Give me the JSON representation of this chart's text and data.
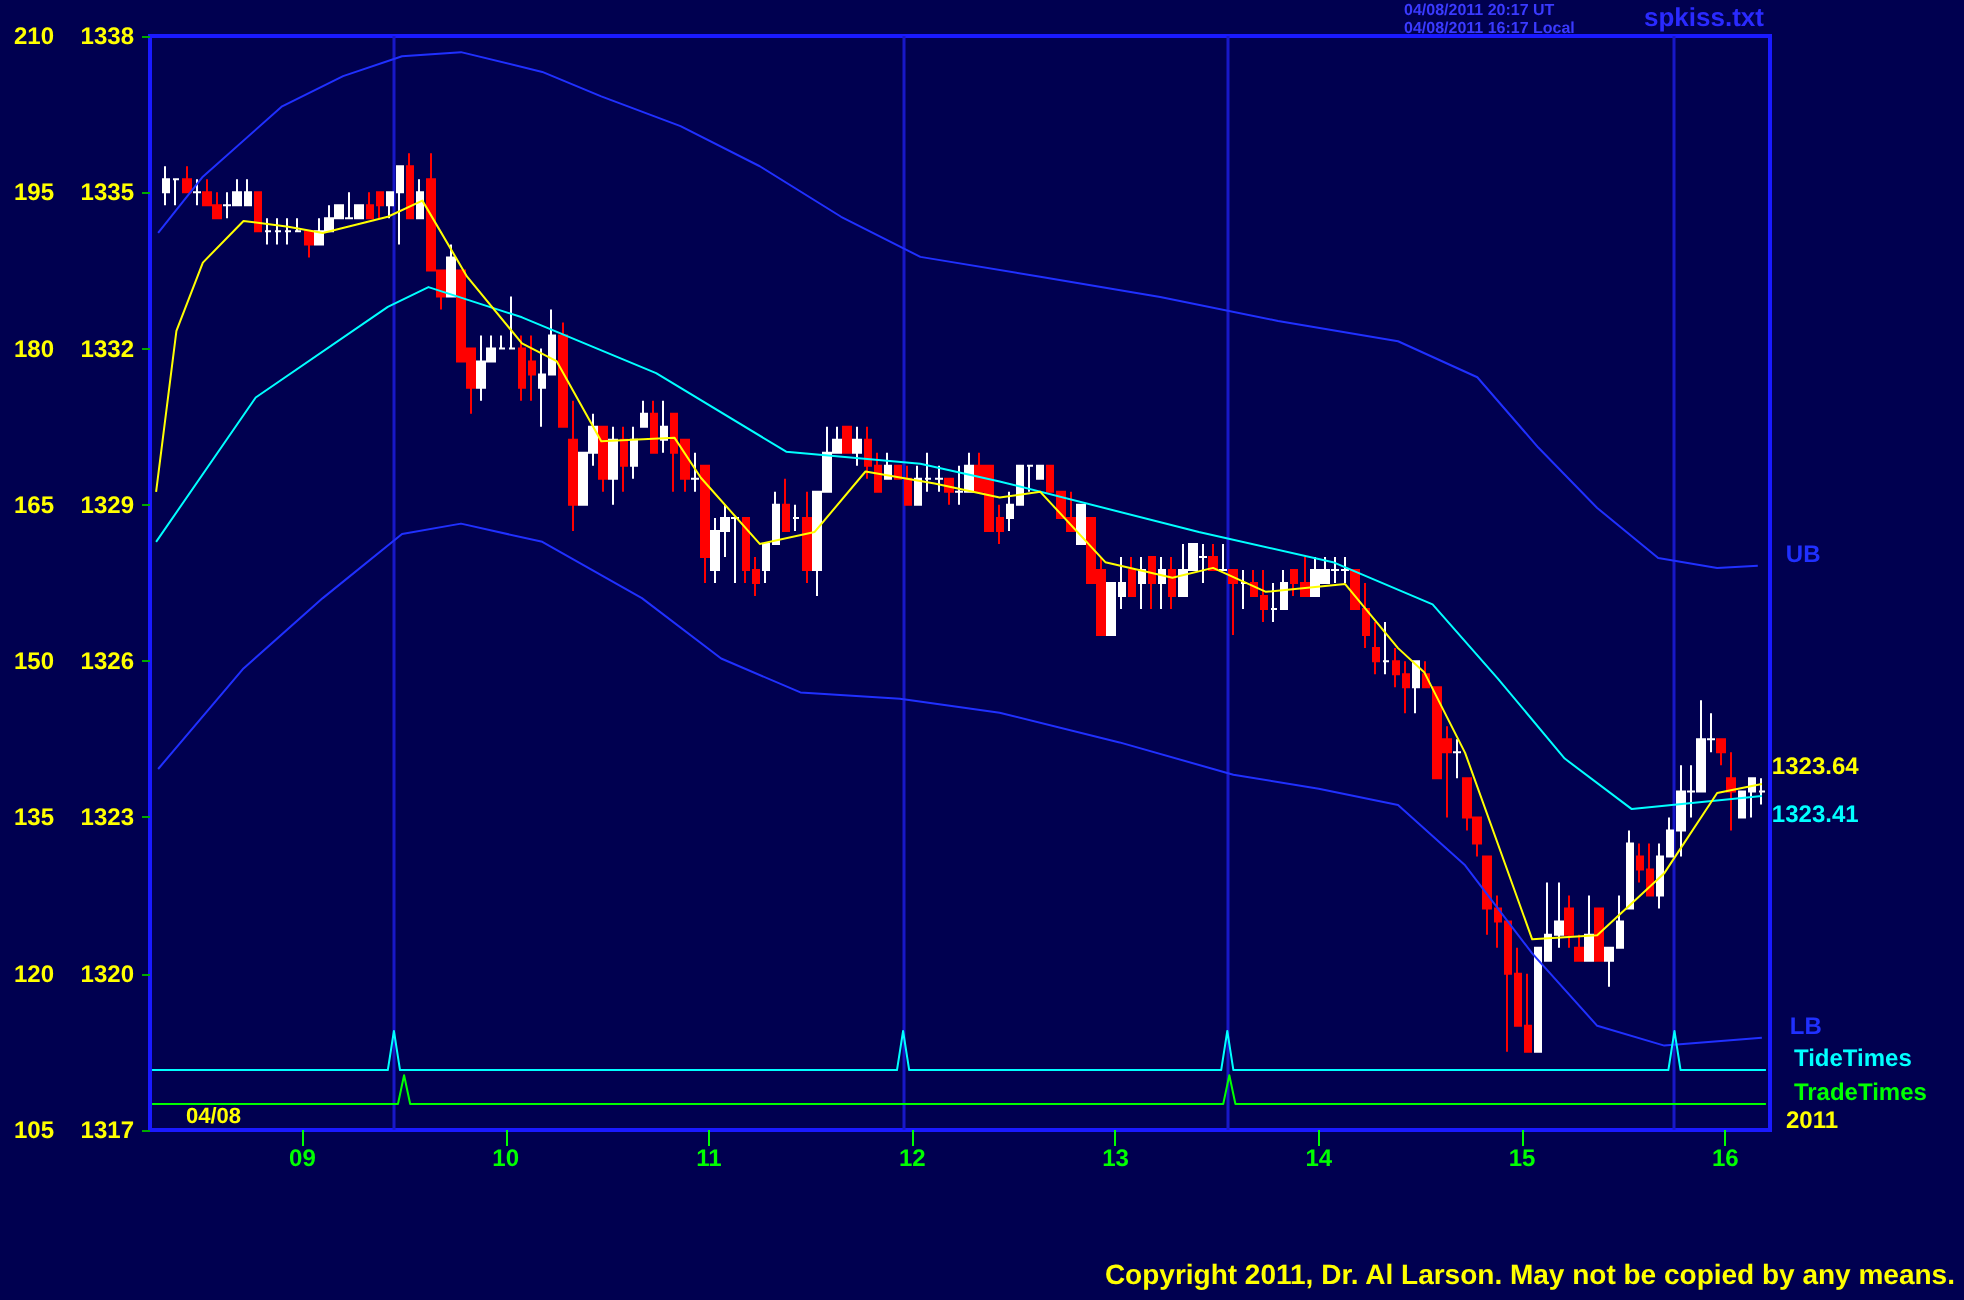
{
  "chart_data": {
    "type": "candlestick",
    "xlim": [
      8.25,
      16.22
    ],
    "xticks": [
      {
        "value": 9,
        "label": "09"
      },
      {
        "value": 10,
        "label": "10"
      },
      {
        "value": 11,
        "label": "11"
      },
      {
        "value": 12,
        "label": "12"
      },
      {
        "value": 13,
        "label": "13"
      },
      {
        "value": 14,
        "label": "14"
      },
      {
        "value": 15,
        "label": "15"
      },
      {
        "value": 16,
        "label": "16"
      }
    ],
    "ylim": [
      1317,
      1338
    ],
    "yticks": [
      1317,
      1320,
      1323,
      1326,
      1329,
      1332,
      1335,
      1338
    ],
    "y2lim": [
      105,
      210
    ],
    "y2ticks": [
      105,
      120,
      135,
      150,
      165,
      180,
      195,
      210
    ],
    "annotations": [
      "spkiss.txt",
      "04/08/2011 20:17 UT",
      "04/08/2011 16:17 Local",
      "04/08",
      "2011",
      "Copyright 2011, Dr. Al Larson. May not be copied by any means."
    ],
    "ref_lines": [
      {
        "axis": "x",
        "value": 9.45,
        "color": "#1818c8"
      },
      {
        "axis": "x",
        "value": 11.955,
        "color": "#1818c8"
      },
      {
        "axis": "x",
        "value": 13.55,
        "color": "#1818c8"
      },
      {
        "axis": "x",
        "value": 15.75,
        "color": "#1818c8"
      }
    ],
    "series": [
      {
        "colors": [
          "#ffffff",
          "#ffffff",
          "#ff0000",
          "#ffffff",
          "#ff0000",
          "#ff0000",
          "#ffffff",
          "#ffffff",
          "#ffffff",
          "#ff0000",
          "#ffffff",
          "#ffffff",
          "#ffffff",
          "#ffffff",
          "#ff0000",
          "#ffffff",
          "#ffffff",
          "#ffffff",
          "#ffffff",
          "#ffffff",
          "#ff0000",
          "#ff0000",
          "#ffffff",
          "#ffffff",
          "#ff0000",
          "#ffffff",
          "#ff0000",
          "#ff0000",
          "#ffffff",
          "#ff0000",
          "#ff0000",
          "#ffffff",
          "#ffffff",
          "#ffffff",
          "#ffffff",
          "#ff0000",
          "#ff0000",
          "#ffffff",
          "#ffffff",
          "#ff0000",
          "#ff0000",
          "#ffffff",
          "#ffffff",
          "#ff0000",
          "#ffffff",
          "#ff0000",
          "#ffffff",
          "#ffffff",
          "#ff0000",
          "#ffffff",
          "#ff0000",
          "#ff0000",
          "#ffffff",
          "#ff0000",
          "#ffffff",
          "#ffffff",
          "#ffffff",
          "#ff0000",
          "#ff0000",
          "#ffffff",
          "#ffffff",
          "#ff0000",
          "#ffffff",
          "#ff0000",
          "#ffffff",
          "#ffffff",
          "#ffffff",
          "#ff0000",
          "#ffffff",
          "#ff0000",
          "#ff0000",
          "#ffffff",
          "#ff0000",
          "#ff0000",
          "#ffffff",
          "#ffffff",
          "#ffffff",
          "#ff0000",
          "#ffffff",
          "#ffffff",
          "#ff0000",
          "#ff0000",
          "#ff0000",
          "#ffffff",
          "#ffffff",
          "#ffffff",
          "#ffffff",
          "#ff0000",
          "#ff0000",
          "#ff0000",
          "#ffffff",
          "#ff0000",
          "#ff0000",
          "#ffffff",
          "#ffffff",
          "#ff0000",
          "#ffffff",
          "#ff0000",
          "#ffffff",
          "#ff0000",
          "#ffffff",
          "#ffffff",
          "#ffffff",
          "#ff0000",
          "#ffffff",
          "#ff0000",
          "#ffffff",
          "#ff0000",
          "#ff0000",
          "#ffffff",
          "#ffffff",
          "#ff0000",
          "#ff0000",
          "#ffffff",
          "#ffffff",
          "#ffffff",
          "#ffffff",
          "#ff0000",
          "#ff0000",
          "#ff0000",
          "#ffffff",
          "#ff0000",
          "#ff0000",
          "#ffffff",
          "#ff0000",
          "#ff0000",
          "#ff0000",
          "#ffffff",
          "#ff0000",
          "#ff0000",
          "#ff0000",
          "#ff0000",
          "#ff0000",
          "#ff0000",
          "#ff0000",
          "#ffffff",
          "#ffffff",
          "#ffffff",
          "#ff0000",
          "#ff0000",
          "#ffffff",
          "#ff0000",
          "#ffffff",
          "#ffffff",
          "#ffffff",
          "#ff0000",
          "#ff0000",
          "#ffffff",
          "#ffffff",
          "#ffffff",
          "#ffffff",
          "#ffffff",
          "#ffffff",
          "#ff0000",
          "#ff0000",
          "#ffffff",
          "#ffffff",
          "#ffffff"
        ],
        "x": [
          8.33,
          8.38,
          8.43,
          8.48,
          8.53,
          8.58,
          8.63,
          8.68,
          8.73,
          8.78,
          8.83,
          8.88,
          8.93,
          8.98,
          9.03,
          9.08,
          9.13,
          9.18,
          9.23,
          9.28,
          9.33,
          9.38,
          9.43,
          9.48,
          9.53,
          9.58,
          9.63,
          9.68,
          9.73,
          9.78,
          9.83,
          9.88,
          9.93,
          9.98,
          10.03,
          10.08,
          10.13,
          10.18,
          10.23,
          10.28,
          10.33,
          10.38,
          10.43,
          10.48,
          10.53,
          10.58,
          10.63,
          10.68,
          10.73,
          10.78,
          10.83,
          10.88,
          10.93,
          10.98,
          11.03,
          11.08,
          11.13,
          11.18,
          11.23,
          11.28,
          11.33,
          11.38,
          11.43,
          11.48,
          11.53,
          11.58,
          11.63,
          11.68,
          11.73,
          11.78,
          11.83,
          11.88,
          11.93,
          11.98,
          12.03,
          12.08,
          12.13,
          12.18,
          12.23,
          12.28,
          12.33,
          12.38,
          12.43,
          12.48,
          12.53,
          12.58,
          12.63,
          12.68,
          12.73,
          12.78,
          12.83,
          12.88,
          12.93,
          12.98,
          13.03,
          13.08,
          13.13,
          13.18,
          13.23,
          13.28,
          13.33,
          13.38,
          13.43,
          13.48,
          13.53,
          13.58,
          13.63,
          13.68,
          13.73,
          13.78,
          13.83,
          13.88,
          13.93,
          13.98,
          14.03,
          14.08,
          14.13,
          14.18,
          14.23,
          14.28,
          14.33,
          14.38,
          14.43,
          14.48,
          14.53,
          14.58,
          14.63,
          14.68,
          14.73,
          14.78,
          14.83,
          14.88,
          14.93,
          14.98,
          15.03,
          15.08,
          15.13,
          15.18,
          15.23,
          15.28,
          15.33,
          15.38,
          15.43,
          15.48,
          15.53,
          15.58,
          15.63,
          15.68,
          15.73,
          15.78,
          15.83,
          15.88,
          15.93,
          15.98,
          16.03,
          16.08,
          16.13,
          16.18
        ],
        "ohlc": [
          [
            1335,
            1335.5,
            1334.75,
            1335.25
          ],
          [
            1335.25,
            1335.25,
            1334.75,
            1335.25
          ],
          [
            1335.25,
            1335.5,
            1335,
            1335
          ],
          [
            1335,
            1335.25,
            1334.75,
            1335
          ],
          [
            1335,
            1335.25,
            1334.75,
            1334.75
          ],
          [
            1334.75,
            1335,
            1334.5,
            1334.5
          ],
          [
            1334.75,
            1335,
            1334.5,
            1334.75
          ],
          [
            1334.75,
            1335.25,
            1334.75,
            1335
          ],
          [
            1334.75,
            1335.25,
            1334.75,
            1335
          ],
          [
            1335,
            1335,
            1334.25,
            1334.25
          ],
          [
            1334.25,
            1334.5,
            1334,
            1334.25
          ],
          [
            1334.25,
            1334.5,
            1334,
            1334.25
          ],
          [
            1334.25,
            1334.5,
            1334,
            1334.25
          ],
          [
            1334.25,
            1334.5,
            1334.25,
            1334.25
          ],
          [
            1334.25,
            1334.25,
            1333.75,
            1334
          ],
          [
            1334,
            1334.5,
            1334,
            1334.25
          ],
          [
            1334.25,
            1334.75,
            1334.25,
            1334.5
          ],
          [
            1334.5,
            1334.75,
            1334.5,
            1334.75
          ],
          [
            1334.5,
            1335,
            1334.5,
            1334.5
          ],
          [
            1334.5,
            1334.75,
            1334.5,
            1334.75
          ],
          [
            1334.75,
            1335,
            1334.5,
            1334.5
          ],
          [
            1335,
            1335,
            1334.5,
            1334.75
          ],
          [
            1334.75,
            1335,
            1334.5,
            1335
          ],
          [
            1335,
            1335.5,
            1334,
            1335.5
          ],
          [
            1335.5,
            1335.75,
            1334.5,
            1334.5
          ],
          [
            1334.5,
            1335.25,
            1334.5,
            1335
          ],
          [
            1335.25,
            1335.75,
            1333.5,
            1333.5
          ],
          [
            1333.5,
            1333.5,
            1332.75,
            1333
          ],
          [
            1333,
            1334,
            1333,
            1333.75
          ],
          [
            1333.5,
            1333.5,
            1331.75,
            1331.75
          ],
          [
            1332,
            1332,
            1330.75,
            1331.25
          ],
          [
            1331.25,
            1332.25,
            1331,
            1331.75
          ],
          [
            1331.75,
            1332.25,
            1331.75,
            1332
          ],
          [
            1332,
            1332.25,
            1332,
            1332
          ],
          [
            1332,
            1333,
            1332,
            1332
          ],
          [
            1332,
            1332.25,
            1331,
            1331.25
          ],
          [
            1331.75,
            1332.25,
            1331,
            1331.5
          ],
          [
            1331.25,
            1332,
            1330.5,
            1331.5
          ],
          [
            1331.5,
            1332.75,
            1331.5,
            1332.25
          ],
          [
            1332.25,
            1332.5,
            1330.5,
            1330.5
          ],
          [
            1330.25,
            1331,
            1328.5,
            1329
          ],
          [
            1329,
            1330,
            1329,
            1330
          ],
          [
            1330,
            1330.75,
            1329.75,
            1330.5
          ],
          [
            1330.5,
            1330.5,
            1329.25,
            1329.5
          ],
          [
            1329.5,
            1330.5,
            1329,
            1330.25
          ],
          [
            1330.25,
            1330.5,
            1329.25,
            1329.75
          ],
          [
            1329.75,
            1330.5,
            1329.5,
            1330.25
          ],
          [
            1330.5,
            1331,
            1330.5,
            1330.75
          ],
          [
            1330.75,
            1331,
            1330,
            1330
          ],
          [
            1330.25,
            1331,
            1330,
            1330.5
          ],
          [
            1330.75,
            1330.75,
            1329.25,
            1330
          ],
          [
            1330.25,
            1330.25,
            1329.25,
            1329.5
          ],
          [
            1329.5,
            1330,
            1329.25,
            1329.5
          ],
          [
            1329.75,
            1329.75,
            1327.5,
            1328
          ],
          [
            1327.75,
            1328.75,
            1327.5,
            1328.5
          ],
          [
            1328.5,
            1329,
            1328,
            1328.75
          ],
          [
            1328.75,
            1328.75,
            1327.5,
            1328.75
          ],
          [
            1328.75,
            1328.75,
            1327.5,
            1327.75
          ],
          [
            1327.75,
            1328,
            1327.25,
            1327.5
          ],
          [
            1327.75,
            1328.25,
            1327.5,
            1328.25
          ],
          [
            1328.25,
            1329.25,
            1328.25,
            1329
          ],
          [
            1329,
            1329.5,
            1328.5,
            1328.5
          ],
          [
            1328.75,
            1329,
            1328.5,
            1328.75
          ],
          [
            1328.75,
            1329.25,
            1327.5,
            1327.75
          ],
          [
            1327.75,
            1329.25,
            1327.25,
            1329.25
          ],
          [
            1329.25,
            1330.5,
            1329.25,
            1330
          ],
          [
            1330,
            1330.5,
            1330,
            1330.25
          ],
          [
            1330.5,
            1330.5,
            1330,
            1330
          ],
          [
            1330,
            1330.5,
            1329.75,
            1330.25
          ],
          [
            1330.25,
            1330.5,
            1329.5,
            1329.75
          ],
          [
            1329.75,
            1330,
            1329.25,
            1329.25
          ],
          [
            1329.5,
            1330,
            1329.5,
            1329.75
          ],
          [
            1329.75,
            1329.75,
            1329.5,
            1329.5
          ],
          [
            1329.5,
            1329.75,
            1329,
            1329
          ],
          [
            1329,
            1329.75,
            1329,
            1329.5
          ],
          [
            1329.5,
            1330,
            1329.25,
            1329.5
          ],
          [
            1329.5,
            1329.75,
            1329.25,
            1329.5
          ],
          [
            1329.5,
            1329.5,
            1329,
            1329.25
          ],
          [
            1329.25,
            1329.75,
            1329,
            1329.25
          ],
          [
            1329.25,
            1330,
            1329.25,
            1329.75
          ],
          [
            1329.75,
            1330,
            1329.25,
            1329.25
          ],
          [
            1329.75,
            1329.75,
            1328.5,
            1328.5
          ],
          [
            1328.75,
            1329,
            1328.25,
            1328.5
          ],
          [
            1328.75,
            1329.25,
            1328.5,
            1329
          ],
          [
            1329,
            1329.75,
            1329,
            1329.75
          ],
          [
            1329.75,
            1329.75,
            1329.25,
            1329.75
          ],
          [
            1329.5,
            1329.75,
            1329.5,
            1329.75
          ],
          [
            1329.75,
            1329.75,
            1329.25,
            1329.25
          ],
          [
            1329.25,
            1329.25,
            1328.75,
            1328.75
          ],
          [
            1328.75,
            1329.25,
            1328.5,
            1328.5
          ],
          [
            1328.25,
            1329,
            1328.25,
            1329
          ],
          [
            1328.75,
            1328.75,
            1327.5,
            1327.5
          ],
          [
            1327.75,
            1328,
            1326.5,
            1326.5
          ],
          [
            1326.5,
            1327.5,
            1326.5,
            1327.5
          ],
          [
            1327.25,
            1328,
            1327,
            1327.5
          ],
          [
            1327.75,
            1328,
            1327.25,
            1327.25
          ],
          [
            1327.5,
            1328,
            1327,
            1327.75
          ],
          [
            1328,
            1328,
            1327,
            1327.5
          ],
          [
            1327.5,
            1328,
            1327,
            1327.75
          ],
          [
            1327.75,
            1328,
            1327,
            1327.25
          ],
          [
            1327.25,
            1328.25,
            1327.25,
            1327.75
          ],
          [
            1327.75,
            1328.25,
            1327.75,
            1328.25
          ],
          [
            1328,
            1328.25,
            1327.5,
            1328
          ],
          [
            1328,
            1328.25,
            1327.75,
            1327.75
          ],
          [
            1327.75,
            1328.25,
            1327.75,
            1327.75
          ],
          [
            1327.75,
            1327.75,
            1326.5,
            1327.5
          ],
          [
            1327.5,
            1327.75,
            1327,
            1327.5
          ],
          [
            1327.5,
            1327.75,
            1327.25,
            1327.25
          ],
          [
            1327.25,
            1327.75,
            1326.75,
            1327
          ],
          [
            1327,
            1327.5,
            1326.75,
            1327
          ],
          [
            1327,
            1327.75,
            1327,
            1327.5
          ],
          [
            1327.75,
            1327.75,
            1327.25,
            1327.5
          ],
          [
            1327.5,
            1328,
            1327.25,
            1327.25
          ],
          [
            1327.25,
            1328,
            1327.25,
            1327.75
          ],
          [
            1327.5,
            1328,
            1327.5,
            1327.75
          ],
          [
            1327.75,
            1328,
            1327.5,
            1327.75
          ],
          [
            1327.75,
            1328,
            1327.5,
            1327.75
          ],
          [
            1327.75,
            1327.75,
            1327,
            1327
          ],
          [
            1327,
            1327.5,
            1326.25,
            1326.5
          ],
          [
            1326.25,
            1326.75,
            1325.75,
            1326
          ],
          [
            1326,
            1326.75,
            1325.75,
            1326
          ],
          [
            1326,
            1326.25,
            1325.5,
            1325.75
          ],
          [
            1325.75,
            1326,
            1325,
            1325.5
          ],
          [
            1325.5,
            1326,
            1325,
            1326
          ],
          [
            1325.75,
            1326,
            1325.5,
            1325.5
          ],
          [
            1325.5,
            1325.5,
            1323.75,
            1323.75
          ],
          [
            1324.5,
            1324.75,
            1323,
            1324.25
          ],
          [
            1324.25,
            1324.5,
            1323.75,
            1324.25
          ],
          [
            1323.75,
            1323.75,
            1322.75,
            1323
          ],
          [
            1323,
            1323,
            1322.25,
            1322.5
          ],
          [
            1322.25,
            1322.25,
            1320.75,
            1321.25
          ],
          [
            1321.25,
            1321.5,
            1320.5,
            1321
          ],
          [
            1321,
            1321,
            1318.5,
            1320
          ],
          [
            1320,
            1320.5,
            1319,
            1319
          ],
          [
            1319,
            1320,
            1318.5,
            1318.5
          ],
          [
            1318.5,
            1320.5,
            1318.5,
            1320.5
          ],
          [
            1320.25,
            1321.75,
            1320.25,
            1320.75
          ],
          [
            1320.75,
            1321.75,
            1320.5,
            1321
          ],
          [
            1321.25,
            1321.5,
            1320.5,
            1320.75
          ],
          [
            1320.5,
            1320.75,
            1320.25,
            1320.25
          ],
          [
            1320.25,
            1321.5,
            1320.25,
            1320.75
          ],
          [
            1321.25,
            1321.25,
            1320.25,
            1320.25
          ],
          [
            1320.25,
            1320.5,
            1319.75,
            1320.5
          ],
          [
            1320.5,
            1321.5,
            1320.5,
            1321
          ],
          [
            1321.25,
            1322.75,
            1321.25,
            1322.5
          ],
          [
            1322.25,
            1322.5,
            1321.75,
            1322
          ],
          [
            1322,
            1322.5,
            1321.5,
            1321.5
          ],
          [
            1321.5,
            1322.5,
            1321.25,
            1322.25
          ],
          [
            1322.25,
            1323,
            1322.25,
            1322.75
          ],
          [
            1322.75,
            1324,
            1322.25,
            1323.5
          ],
          [
            1323.5,
            1324,
            1323,
            1323.5
          ],
          [
            1323.5,
            1325.25,
            1323.5,
            1324.5
          ],
          [
            1324.5,
            1325,
            1324.25,
            1324.5
          ],
          [
            1324.5,
            1324.5,
            1324,
            1324.25
          ],
          [
            1323.75,
            1324.25,
            1322.75,
            1323.5
          ],
          [
            1323,
            1323.5,
            1323,
            1323.5
          ],
          [
            1323.5,
            1323.75,
            1323,
            1323.75
          ],
          [
            1323.5,
            1323.75,
            1323.25,
            1323.5
          ]
        ]
      },
      {
        "type": "line",
        "name": "UB",
        "color": "#2030ff",
        "x": [
          8.29,
          8.51,
          8.9,
          9.2,
          9.49,
          9.78,
          10.18,
          10.47,
          10.86,
          11.25,
          11.65,
          12.04,
          12.63,
          13.22,
          13.8,
          14.39,
          14.78,
          15.08,
          15.37,
          15.67,
          15.96,
          16.16
        ],
        "values": [
          1334.22,
          1335.3,
          1336.65,
          1337.23,
          1337.61,
          1337.69,
          1337.31,
          1336.84,
          1336.27,
          1335.5,
          1334.53,
          1333.76,
          1333.38,
          1332.99,
          1332.53,
          1332.14,
          1331.45,
          1330.1,
          1328.94,
          1327.98,
          1327.79,
          1327.83
        ]
      },
      {
        "type": "line",
        "name": "LB",
        "color": "#2030ff",
        "x": [
          8.29,
          8.71,
          9.1,
          9.49,
          9.78,
          10.18,
          10.67,
          11.06,
          11.45,
          11.94,
          12.43,
          13.02,
          13.58,
          14.0,
          14.39,
          14.72,
          15.05,
          15.37,
          15.7,
          16.18
        ],
        "values": [
          1323.93,
          1325.86,
          1327.21,
          1328.44,
          1328.64,
          1328.29,
          1327.21,
          1326.05,
          1325.4,
          1325.28,
          1325.01,
          1324.44,
          1323.82,
          1323.55,
          1323.24,
          1322.08,
          1320.39,
          1319.0,
          1318.62,
          1318.77
        ]
      },
      {
        "type": "line",
        "color": "#00ffff",
        "x": [
          8.28,
          8.77,
          9.42,
          9.62,
          10.08,
          10.74,
          11.38,
          12.04,
          12.43,
          13.41,
          14.07,
          14.56,
          14.88,
          15.21,
          15.54,
          16.18
        ],
        "values": [
          1328.29,
          1331.06,
          1332.8,
          1333.18,
          1332.6,
          1331.53,
          1330.02,
          1329.79,
          1329.45,
          1328.48,
          1327.9,
          1327.09,
          1325.67,
          1324.13,
          1323.16,
          1323.41
        ],
        "value_labels": [
          null,
          null,
          null,
          null,
          null,
          null,
          null,
          null,
          null,
          null,
          null,
          null,
          null,
          null,
          null,
          "1323.41"
        ]
      },
      {
        "type": "line",
        "color": "#ffff00",
        "x": [
          8.28,
          8.38,
          8.51,
          8.71,
          8.93,
          9.1,
          9.42,
          9.59,
          9.81,
          10.08,
          10.25,
          10.47,
          10.83,
          10.96,
          11.25,
          11.52,
          11.77,
          12.11,
          12.43,
          12.63,
          12.95,
          13.28,
          13.48,
          13.74,
          14.13,
          14.39,
          14.52,
          14.72,
          15.05,
          15.37,
          15.7,
          15.96,
          16.18
        ],
        "values": [
          1329.25,
          1332.34,
          1333.65,
          1334.45,
          1334.34,
          1334.22,
          1334.53,
          1334.84,
          1333.38,
          1332.1,
          1331.76,
          1330.22,
          1330.29,
          1329.52,
          1328.25,
          1328.48,
          1329.64,
          1329.41,
          1329.14,
          1329.25,
          1327.9,
          1327.6,
          1327.79,
          1327.33,
          1327.48,
          1326.25,
          1325.78,
          1324.24,
          1320.66,
          1320.74,
          1321.93,
          1323.47,
          1323.64
        ],
        "value_labels": [
          null,
          null,
          null,
          null,
          null,
          null,
          null,
          null,
          null,
          null,
          null,
          null,
          null,
          null,
          null,
          null,
          null,
          null,
          null,
          null,
          null,
          null,
          null,
          null,
          null,
          null,
          null,
          null,
          null,
          null,
          null,
          null,
          "1323.64"
        ]
      },
      {
        "type": "line",
        "name": "TideTimes",
        "color": "#00ffff",
        "x": [
          8.26,
          9.42,
          9.45,
          9.48,
          11.925,
          11.955,
          11.985,
          13.52,
          13.55,
          13.58,
          15.72,
          15.75,
          15.78,
          16.2
        ],
        "values": [
          1318.15,
          1318.15,
          1318.9,
          1318.15,
          1318.15,
          1318.9,
          1318.15,
          1318.15,
          1318.9,
          1318.15,
          1318.15,
          1318.9,
          1318.15,
          1318.15
        ]
      },
      {
        "type": "line",
        "name": "TradeTimes",
        "color": "#00ff00",
        "x": [
          8.26,
          9.47,
          9.5,
          9.53,
          13.53,
          13.56,
          13.59,
          16.2
        ],
        "values": [
          1317.5,
          1317.5,
          1318.05,
          1317.5,
          1317.5,
          1318.05,
          1317.5,
          1317.5
        ]
      }
    ]
  }
}
